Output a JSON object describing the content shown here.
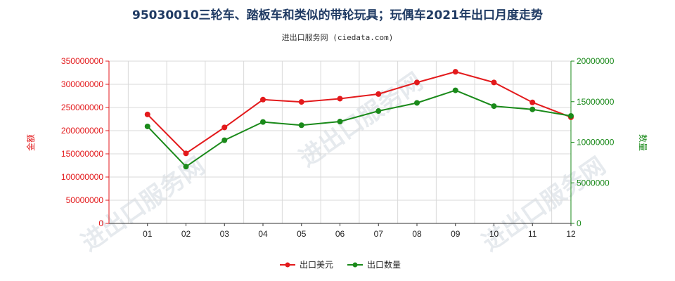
{
  "chart_data": {
    "type": "line",
    "title": "95030010三轮车、踏板车和类似的带轮玩具；玩偶车2021年出口月度走势",
    "subtitle": "进出口服务网 (ciedata.com)",
    "categories": [
      "01",
      "02",
      "03",
      "04",
      "05",
      "06",
      "07",
      "08",
      "09",
      "10",
      "11",
      "12"
    ],
    "y_left": {
      "label": "金额",
      "range": [
        0,
        350000000
      ],
      "ticks": [
        "0",
        "50000000",
        "100000000",
        "150000000",
        "200000000",
        "250000000",
        "300000000",
        "350000000"
      ],
      "color": "#e31a1c"
    },
    "y_right": {
      "label": "数量",
      "range": [
        0,
        20000000
      ],
      "ticks": [
        "0",
        "5000000",
        "10000000",
        "15000000",
        "20000000"
      ],
      "color": "#1a8a1a"
    },
    "series": [
      {
        "name": "出口美元",
        "axis": "left",
        "color": "#e31a1c",
        "values": [
          235000000,
          151000000,
          207000000,
          267000000,
          262000000,
          269000000,
          279000000,
          304000000,
          327000000,
          304000000,
          261000000,
          229000000
        ]
      },
      {
        "name": "出口数量",
        "axis": "right",
        "color": "#1a8a1a",
        "values": [
          11950000,
          7000000,
          10250000,
          12500000,
          12100000,
          12550000,
          13850000,
          14850000,
          16400000,
          14450000,
          14050000,
          13250000
        ]
      }
    ],
    "grid": true,
    "legend": "bottom-center"
  },
  "watermark": "进出口服务网"
}
